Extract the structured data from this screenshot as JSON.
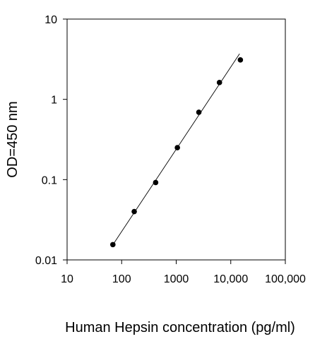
{
  "chart_data": {
    "type": "scatter",
    "title": "",
    "xlabel": "Human Hepsin concentration (pg/ml)",
    "ylabel": "OD=450 nm",
    "x_scale": "log",
    "y_scale": "log",
    "xlim": [
      10,
      100000
    ],
    "ylim": [
      0.01,
      10
    ],
    "x_ticks": [
      10,
      100,
      1000,
      10000,
      100000
    ],
    "x_tick_labels": [
      "10",
      "100",
      "1000",
      "10,000",
      "100,000"
    ],
    "y_ticks": [
      0.01,
      0.1,
      1,
      10
    ],
    "y_tick_labels": [
      "0.01",
      "0.1",
      "1",
      "10"
    ],
    "grid": false,
    "series": [
      {
        "marker": "circle",
        "color": "#000000",
        "points": [
          {
            "x": 69,
            "y": 0.0155
          },
          {
            "x": 170,
            "y": 0.04
          },
          {
            "x": 420,
            "y": 0.092
          },
          {
            "x": 1050,
            "y": 0.25
          },
          {
            "x": 2600,
            "y": 0.69
          },
          {
            "x": 6200,
            "y": 1.62
          },
          {
            "x": 15000,
            "y": 3.1
          }
        ]
      }
    ],
    "fit_line": {
      "type": "linear-log-log",
      "color": "#000000",
      "from": {
        "x": 65,
        "y": 0.0145
      },
      "to": {
        "x": 14500,
        "y": 3.7
      }
    }
  }
}
